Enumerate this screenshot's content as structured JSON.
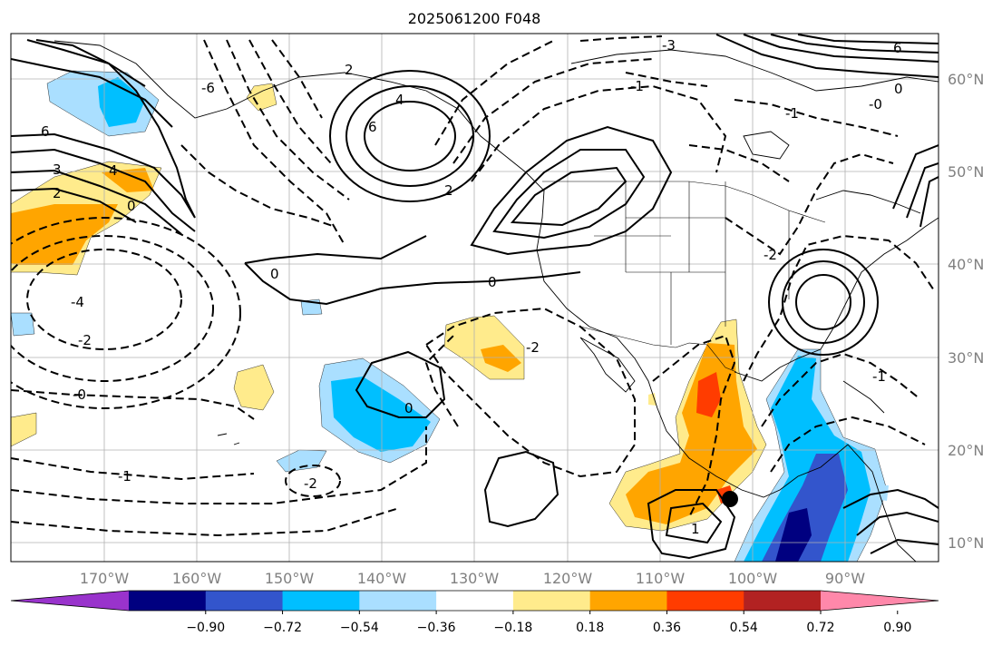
{
  "map": {
    "title": "2025061200 F048",
    "lon_labels": [
      "170°W",
      "160°W",
      "150°W",
      "140°W",
      "130°W",
      "120°W",
      "110°W",
      "100°W",
      "90°W"
    ],
    "lat_labels": [
      "60°N",
      "50°N",
      "40°N",
      "30°N",
      "20°N",
      "10°N"
    ],
    "contour_labels": [
      "6",
      "4",
      "3",
      "2",
      "0",
      "-4",
      "-2",
      "-0",
      "-1",
      "-2",
      "0",
      "0",
      "2",
      "4",
      "6",
      "2",
      "0",
      "1",
      "-2",
      "-6",
      "-3",
      "-1",
      "6",
      "0",
      "-0",
      "-1",
      "-1",
      "-2"
    ],
    "marker": "storm-center-dot"
  },
  "colorbar": {
    "ticks": [
      "−0.90",
      "−0.72",
      "−0.54",
      "−0.36",
      "−0.18",
      "0.18",
      "0.36",
      "0.54",
      "0.72",
      "0.90"
    ],
    "colors": [
      "#9933cc",
      "#000080",
      "#3355cc",
      "#00bfff",
      "#aadfff",
      "#ffffff",
      "#ffeb8c",
      "#ffa500",
      "#ff3c00",
      "#b22222",
      "#ff88aa"
    ]
  }
}
